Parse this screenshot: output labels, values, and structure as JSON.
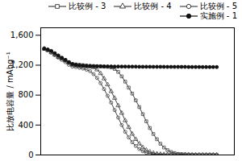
{
  "chart_data": {
    "type": "line",
    "ylabel": "比放电容量 / mAhg⁻¹",
    "x": [
      1,
      2,
      3,
      4,
      5,
      6,
      7,
      8,
      9,
      10,
      11,
      12,
      13,
      14,
      15,
      16,
      17,
      18,
      19,
      20,
      21,
      22,
      23,
      24,
      25,
      26,
      27,
      28,
      29,
      30,
      31,
      32,
      33,
      34,
      35,
      36,
      37,
      38,
      39,
      40,
      41,
      42,
      43,
      44,
      45,
      46,
      47,
      48,
      49,
      50
    ],
    "series": [
      {
        "name": "比较例 - 3",
        "color": "#444444",
        "marker": "square-open",
        "values": [
          1420,
          1400,
          1370,
          1340,
          1310,
          1290,
          1270,
          1240,
          1215,
          1210,
          1205,
          1200,
          1195,
          1190,
          1188,
          1185,
          1182,
          1180,
          1178,
          1170,
          1150,
          1110,
          1050,
          980,
          900,
          820,
          730,
          640,
          545,
          450,
          360,
          280,
          210,
          150,
          100,
          65,
          40,
          25,
          15,
          10,
          8,
          5,
          3,
          2,
          1,
          1,
          1,
          1,
          1,
          0
        ]
      },
      {
        "name": "比较例 - 4",
        "color": "#444444",
        "marker": "triangle-open",
        "values": [
          1420,
          1400,
          1370,
          1340,
          1310,
          1285,
          1260,
          1230,
          1205,
          1200,
          1195,
          1190,
          1185,
          1180,
          1170,
          1140,
          1090,
          1020,
          940,
          850,
          760,
          660,
          560,
          460,
          370,
          280,
          210,
          150,
          100,
          65,
          40,
          25,
          15,
          10,
          7,
          5,
          3,
          2,
          1,
          1,
          1,
          1,
          0,
          0,
          0,
          0,
          0,
          0,
          0,
          0
        ]
      },
      {
        "name": "比较例 - 5",
        "color": "#444444",
        "marker": "circle-open",
        "values": [
          1420,
          1400,
          1370,
          1335,
          1300,
          1270,
          1240,
          1205,
          1180,
          1175,
          1165,
          1155,
          1140,
          1120,
          1080,
          1030,
          960,
          880,
          790,
          700,
          600,
          500,
          400,
          310,
          235,
          170,
          120,
          80,
          50,
          30,
          18,
          12,
          8,
          5,
          3,
          2,
          1,
          1,
          1,
          1,
          0,
          0,
          0,
          0,
          0,
          0,
          0,
          0,
          0,
          0
        ]
      },
      {
        "name": "实施例 - 1",
        "color": "#111111",
        "marker": "circle",
        "values": [
          1420,
          1410,
          1390,
          1360,
          1330,
          1300,
          1270,
          1240,
          1215,
          1205,
          1198,
          1193,
          1190,
          1188,
          1187,
          1186,
          1185,
          1184,
          1183,
          1183,
          1182,
          1182,
          1181,
          1181,
          1180,
          1180,
          1180,
          1179,
          1179,
          1179,
          1179,
          1178,
          1178,
          1178,
          1178,
          1177,
          1177,
          1177,
          1177,
          1177,
          1177,
          1176,
          1176,
          1176,
          1176,
          1175,
          1175,
          1175,
          1175,
          1175
        ]
      }
    ],
    "xlim": [
      0,
      55
    ],
    "ylim": [
      0,
      1700
    ],
    "yticks": [
      0,
      400,
      800,
      1200,
      1600
    ],
    "tick_labels": "y",
    "legend": "upper right"
  }
}
